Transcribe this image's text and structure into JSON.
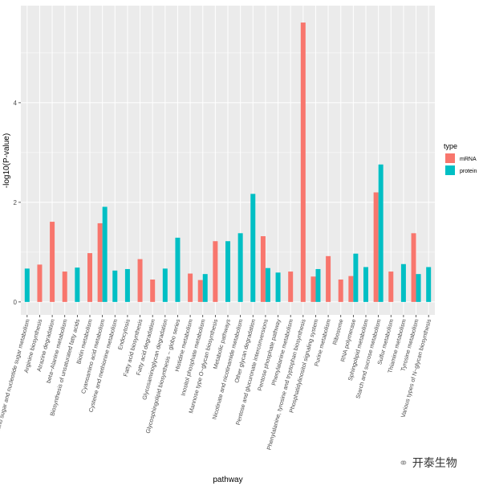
{
  "chart_data": {
    "type": "bar",
    "title": "",
    "xlabel": "pathway",
    "ylabel": "-log10(P-value)",
    "ylim": [
      -0.26,
      5.95
    ],
    "yticks": [
      0,
      2,
      4
    ],
    "grid": true,
    "legend": {
      "title": "type",
      "placement": "right"
    },
    "categories": [
      "Amino sugar and nucleotide sugar metabolism",
      "Arginine biosynthesis",
      "Atrazine degradation",
      "beta−Alanine metabolism",
      "Biosynthesis of unsaturated fatty acids",
      "Biotin metabolism",
      "Cyanoamino acid metabolism",
      "Cysteine and methionine metabolism",
      "Endocytosis",
      "Fatty acid biosynthesis",
      "Fatty acid degradation",
      "Glycosaminoglycan degradation",
      "Glycosphingolipid biosynthesis − globo series",
      "Histidine metabolism",
      "Inositol phosphate metabolism",
      "Mannose type O−glycan biosynthesis",
      "Metabolic pathways",
      "Nicotinate and nicotinamide metabolism",
      "Other glycan degradation",
      "Pentose and glucuronate interconversions",
      "Pentose phosphate pathway",
      "Phenylalanine metabolism",
      "Phenylalanine, tyrosine and tryptophan biosynthesis",
      "Phosphatidylinositol signaling system",
      "Purine metabolism",
      "Ribosome",
      "RNA polymerase",
      "Sphingolipid metabolism",
      "Starch and sucrose metabolism",
      "Sulfur metabolism",
      "Thiamine metabolism",
      "Tyrosine metabolism",
      "Various types of N−glycan biosynthesis"
    ],
    "series": [
      {
        "name": "mRNA",
        "color": "#F8766D",
        "values": [
          null,
          0.75,
          1.61,
          0.61,
          null,
          0.98,
          1.58,
          null,
          null,
          0.86,
          0.45,
          null,
          null,
          0.57,
          0.44,
          1.22,
          null,
          null,
          null,
          1.32,
          null,
          0.61,
          5.61,
          0.51,
          0.92,
          0.45,
          0.52,
          null,
          2.2,
          0.61,
          null,
          1.38,
          null
        ]
      },
      {
        "name": "protein",
        "color": "#00BFC4",
        "values": [
          0.67,
          null,
          null,
          null,
          0.69,
          null,
          1.91,
          0.63,
          0.66,
          null,
          null,
          0.67,
          1.29,
          null,
          0.56,
          null,
          1.22,
          1.38,
          2.17,
          0.68,
          0.59,
          null,
          null,
          0.66,
          null,
          null,
          0.97,
          0.7,
          2.76,
          null,
          0.76,
          0.56,
          0.7
        ]
      }
    ]
  },
  "watermark": {
    "text": "开泰生物"
  }
}
